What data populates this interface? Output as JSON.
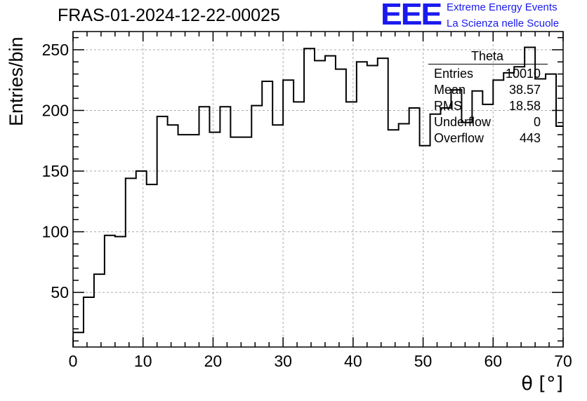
{
  "header": {
    "title": "FRAS-01-2024-12-22-00025",
    "logo_text": "EEE",
    "logo_line1": "Extreme Energy Events",
    "logo_line2": "La Scienza nelle Scuole"
  },
  "stats_box": {
    "title": "Theta",
    "rows": [
      {
        "label": "Entries",
        "value": "10010"
      },
      {
        "label": "Mean",
        "value": "38.57"
      },
      {
        "label": "RMS",
        "value": "18.58"
      },
      {
        "label": "Underflow",
        "value": "0"
      },
      {
        "label": "Overflow",
        "value": "443"
      }
    ]
  },
  "colors": {
    "logo": "#1a1aee",
    "histogram_line": "#000000",
    "grid": "#aaaaaa"
  },
  "chart_data": {
    "type": "bar",
    "style": "step-histogram",
    "title": "FRAS-01-2024-12-22-00025",
    "xlabel": "θ [°]",
    "ylabel": "Entries/bin",
    "xlim": [
      0,
      70
    ],
    "ylim": [
      5,
      265
    ],
    "x_ticks": [
      0,
      10,
      20,
      30,
      40,
      50,
      60,
      70
    ],
    "y_ticks": [
      50,
      100,
      150,
      200,
      250
    ],
    "grid": true,
    "bin_width": 1.5,
    "bin_edges_start": 0,
    "values": [
      17,
      46,
      65,
      97,
      96,
      144,
      150,
      139,
      195,
      188,
      180,
      180,
      203,
      182,
      203,
      178,
      178,
      204,
      224,
      188,
      225,
      207,
      251,
      241,
      245,
      234,
      207,
      240,
      237,
      243,
      184,
      189,
      202,
      171,
      197,
      202,
      217,
      190,
      216,
      205,
      225,
      231,
      236,
      252,
      226,
      230,
      187
    ]
  }
}
